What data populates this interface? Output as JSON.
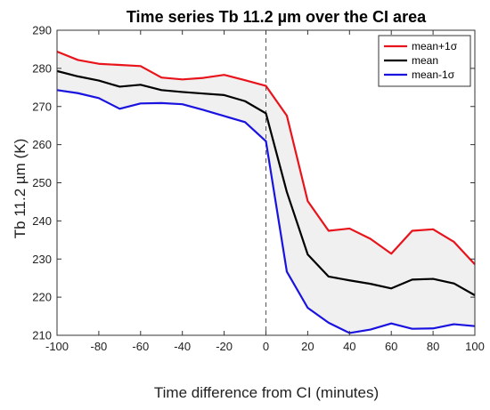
{
  "chart_data": {
    "type": "line",
    "title": "Time series Tb 11.2 µm over the CI area",
    "xlabel": "Time difference from CI (minutes)",
    "ylabel": "Tb 11.2 µm (K)",
    "xlim": [
      -100,
      100
    ],
    "ylim": [
      210,
      290
    ],
    "xticks": [
      -100,
      -80,
      -60,
      -40,
      -20,
      0,
      20,
      40,
      60,
      80,
      100
    ],
    "yticks": [
      210,
      220,
      230,
      240,
      250,
      260,
      270,
      280,
      290
    ],
    "x": [
      -100,
      -90,
      -80,
      -70,
      -60,
      -50,
      -40,
      -30,
      -20,
      -10,
      0,
      10,
      20,
      30,
      40,
      50,
      60,
      70,
      80,
      90,
      100
    ],
    "series": [
      {
        "name": "mean+1σ",
        "color": "#e8131b",
        "values": [
          284.4,
          282.2,
          281.2,
          280.9,
          280.6,
          277.6,
          277.1,
          277.5,
          278.3,
          276.9,
          275.4,
          267.6,
          245.2,
          237.4,
          238.0,
          235.3,
          231.4,
          237.4,
          237.8,
          234.5,
          228.6
        ]
      },
      {
        "name": "mean",
        "color": "#000000",
        "values": [
          279.3,
          277.9,
          276.8,
          275.2,
          275.7,
          274.3,
          273.8,
          273.4,
          273.0,
          271.4,
          268.2,
          247.6,
          231.2,
          225.4,
          224.4,
          223.5,
          222.3,
          224.6,
          224.8,
          223.6,
          220.5
        ]
      },
      {
        "name": "mean-1σ",
        "color": "#1a13e0",
        "values": [
          274.3,
          273.5,
          272.2,
          269.4,
          270.8,
          270.9,
          270.6,
          269.1,
          267.5,
          265.9,
          260.9,
          226.7,
          217.2,
          213.3,
          210.6,
          211.5,
          213.1,
          211.7,
          211.8,
          212.9,
          212.4
        ]
      }
    ],
    "vline_x": 0,
    "shaded_band": "between mean+1σ and mean-1σ",
    "legend_position": "top-right",
    "grid": false
  }
}
